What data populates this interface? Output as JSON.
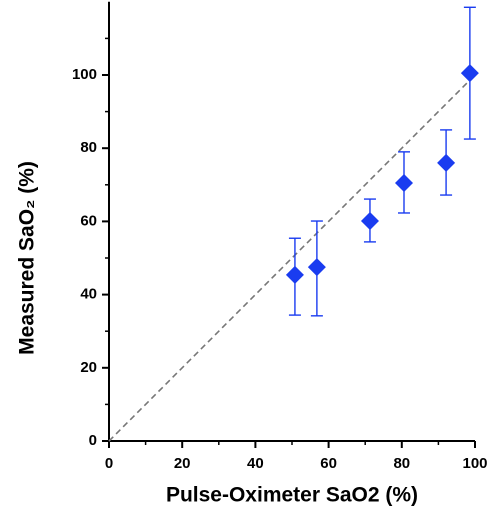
{
  "chart_data": {
    "type": "scatter",
    "xlabel": "Pulse-Oximeter SaO2 (%)",
    "ylabel": "Measured SaO₂ (%)",
    "series": [
      {
        "color": "#1a3cf0",
        "x": [
          50.8,
          56.8,
          71.3,
          80.6,
          92.1,
          98.6
        ],
        "values": [
          45.4,
          47.5,
          60.1,
          70.5,
          76,
          100.5
        ],
        "errors_plus": [
          10,
          12.6,
          6,
          8.5,
          9,
          18
        ],
        "errors_minus": [
          11,
          13.3,
          5.7,
          8.2,
          8.8,
          18
        ]
      }
    ],
    "reference_line": {
      "x": [
        0,
        100
      ],
      "y": [
        0,
        100
      ],
      "color": "#777777"
    },
    "xlim": [
      0,
      100
    ],
    "ylim": [
      0,
      120
    ],
    "xticks": [
      0,
      20,
      40,
      60,
      80,
      100
    ],
    "yticks": [
      0,
      20,
      40,
      60,
      80,
      100
    ],
    "xminorticks": [
      10,
      30,
      50,
      70,
      90
    ],
    "yminorticks": [
      10,
      30,
      50,
      70,
      90,
      110
    ]
  }
}
